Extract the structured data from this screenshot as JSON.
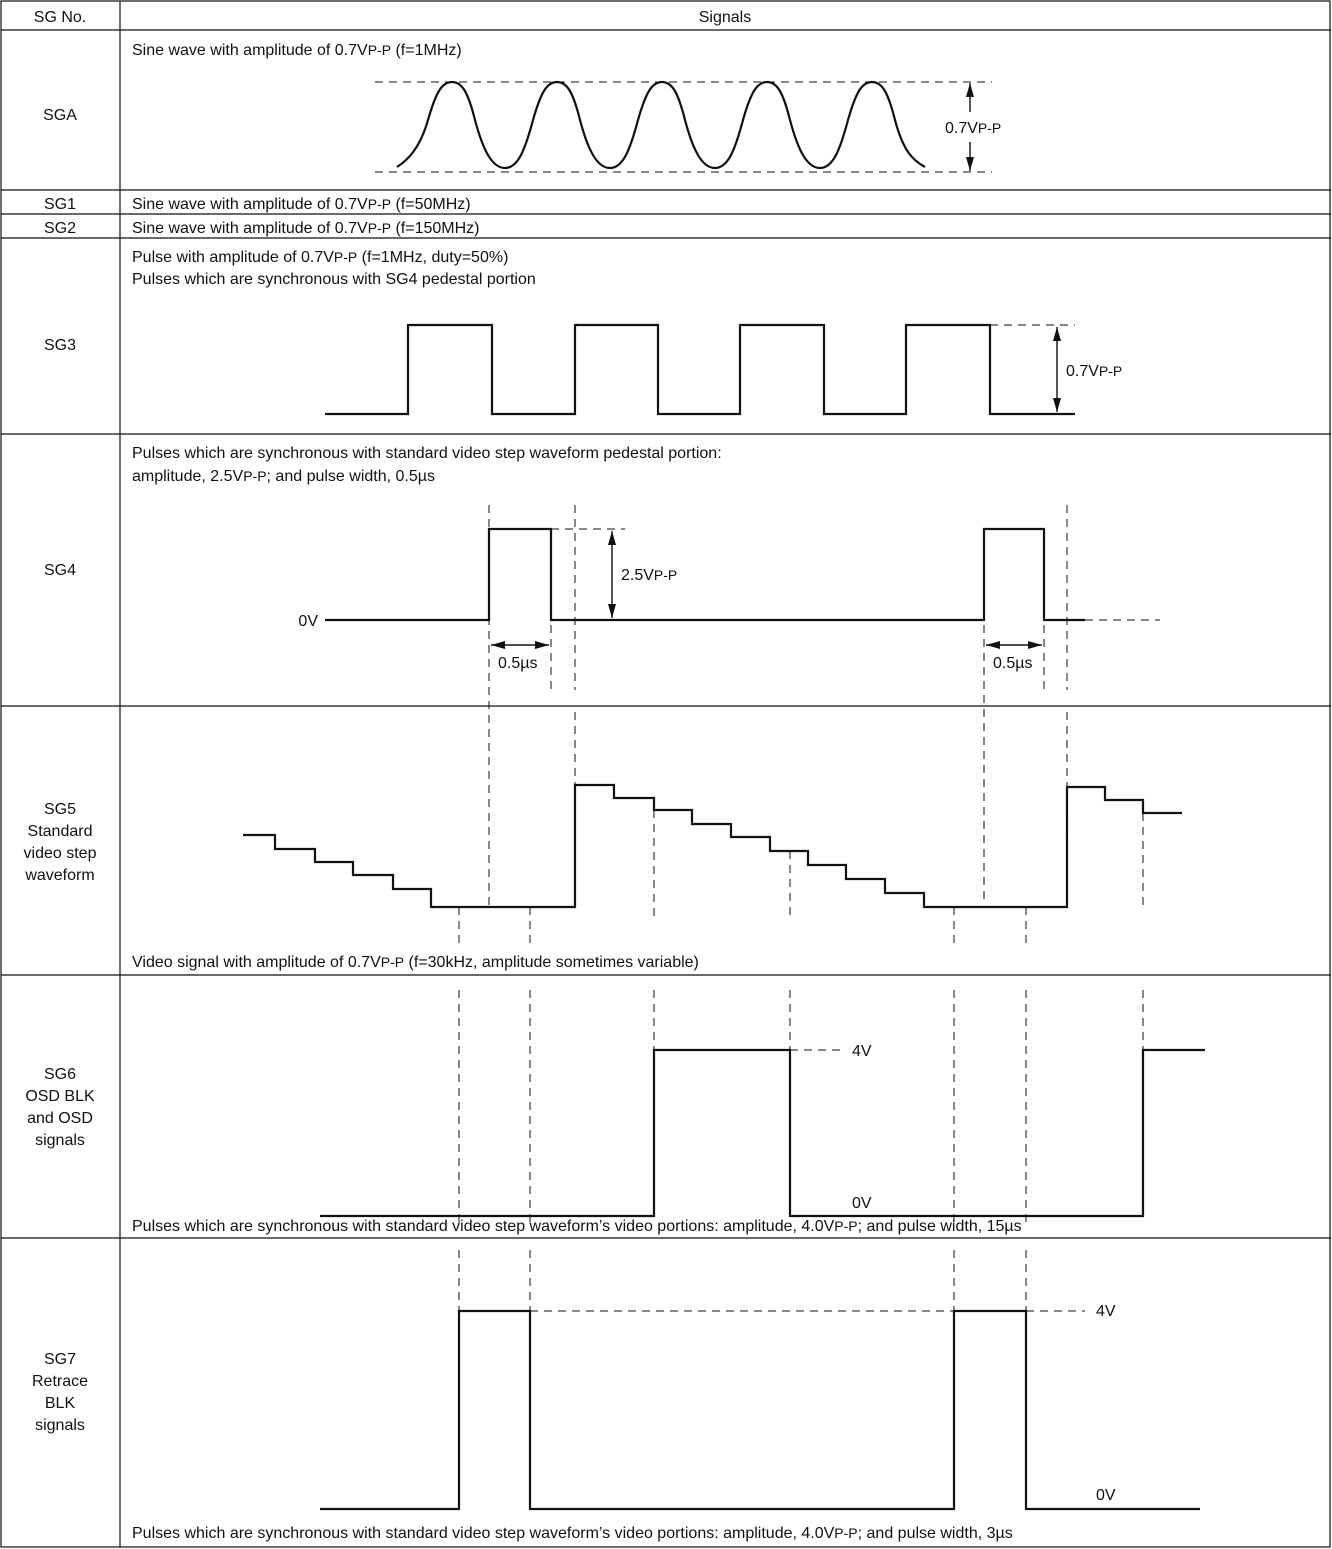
{
  "header": {
    "sg_no": "SG No.",
    "signals": "Signals"
  },
  "rows": {
    "sga": {
      "id": "SGA",
      "desc": "Sine wave with amplitude of  0.7V",
      "desc_sub": "P-P",
      "desc_tail": " (f=1MHz)",
      "amp": "0.7V",
      "amp_sub": "P-P"
    },
    "sg1": {
      "id": "SG1",
      "desc": "Sine wave with amplitude of 0.7V",
      "desc_sub": "P-P",
      "desc_tail": " (f=50MHz)"
    },
    "sg2": {
      "id": "SG2",
      "desc": "Sine wave with amplitude of 0.7V",
      "desc_sub": "P-P",
      "desc_tail": " (f=150MHz)"
    },
    "sg3": {
      "id": "SG3",
      "desc": "Pulse with amplitude of 0.7V",
      "desc_sub": "P-P",
      "desc_tail": " (f=1MHz, duty=50%)",
      "desc2": "Pulses which are synchronous with SG4 pedestal portion",
      "amp": "0.7V",
      "amp_sub": "P-P"
    },
    "sg4": {
      "id": "SG4",
      "desc": "Pulses which are synchronous with standard video step waveform  pedestal portion:",
      "desc2": "amplitude, 2.5V",
      "desc2_sub": "P-P",
      "desc2_tail": "; and pulse width, 0.5µs",
      "amp": "2.5V",
      "amp_sub": "P-P",
      "zero": "0V",
      "width1": "0.5µs",
      "width2": "0.5µs"
    },
    "sg5": {
      "id": "SG5",
      "name_lines": [
        "Standard",
        "video step",
        "waveform"
      ],
      "desc": "Video signal with amplitude of 0.7V",
      "desc_sub": "P-P",
      "desc_tail": " (f=30kHz, amplitude sometimes variable)"
    },
    "sg6": {
      "id": "SG6",
      "name_lines": [
        "OSD BLK",
        "and OSD",
        "signals"
      ],
      "high": "4V",
      "low": "0V",
      "desc": "Pulses which are synchronous with standard video step waveform’s video portions: amplitude, 4.0V",
      "desc_sub": "P-P",
      "desc_tail": "; and pulse width, 15µs"
    },
    "sg7": {
      "id": "SG7",
      "name_lines": [
        "Retrace",
        "BLK",
        "signals"
      ],
      "high": "4V",
      "low": "0V",
      "desc": "Pulses which are synchronous with standard video step waveform’s video portions: amplitude, 4.0V",
      "desc_sub": "P-P",
      "desc_tail": "; and pulse width, 3µs"
    }
  }
}
